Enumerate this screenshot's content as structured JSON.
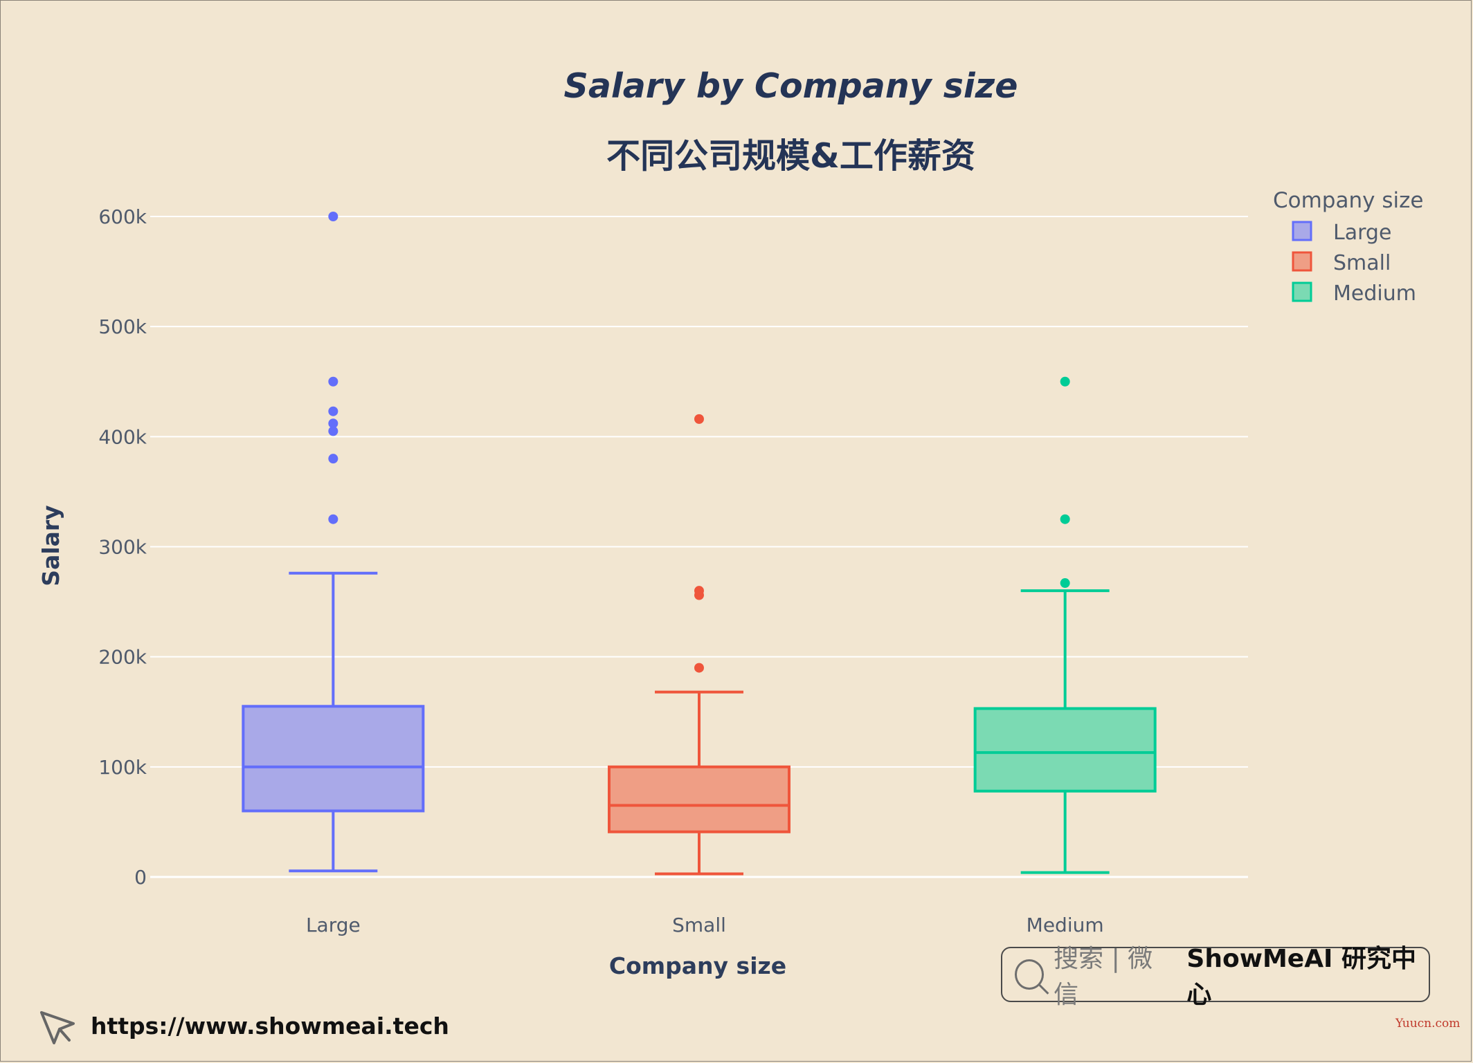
{
  "chart_data": {
    "type": "box",
    "title": "Salary by Company size",
    "subtitle": "不同公司规模&工作薪资",
    "xlabel": "Company size",
    "ylabel": "Salary",
    "ylim": [
      -5000,
      630000
    ],
    "yticks": [
      0,
      100000,
      200000,
      300000,
      400000,
      500000,
      600000
    ],
    "ytick_labels": [
      "0",
      "100k",
      "200k",
      "300k",
      "400k",
      "500k",
      "600k"
    ],
    "categories": [
      "Large",
      "Small",
      "Medium"
    ],
    "grid": true,
    "legend_title": "Company size",
    "legend_position": "top-right",
    "series": [
      {
        "name": "Large",
        "color": "#636efa",
        "fill": "#a9a9e8",
        "whisker_low": 5500,
        "q1": 60000,
        "median": 100000,
        "q3": 155000,
        "whisker_high": 276000,
        "outliers": [
          325000,
          380000,
          405000,
          412000,
          423000,
          450000,
          600000
        ]
      },
      {
        "name": "Small",
        "color": "#ef553b",
        "fill": "#ef9e85",
        "whisker_low": 2800,
        "q1": 41000,
        "median": 65000,
        "q3": 100000,
        "whisker_high": 168000,
        "outliers": [
          190000,
          256000,
          260000,
          416000
        ]
      },
      {
        "name": "Medium",
        "color": "#00cc96",
        "fill": "#7bdab3",
        "whisker_low": 4000,
        "q1": 78000,
        "median": 113000,
        "q3": 153000,
        "whisker_high": 260000,
        "outliers": [
          267000,
          325000,
          450000
        ]
      }
    ]
  },
  "footer": {
    "search_hint": "搜索 | 微信",
    "search_brand": "ShowMeAI 研究中心",
    "site_url": "https://www.showmeai.tech",
    "watermark": "Yuucn.com"
  },
  "icons": [
    "search-icon",
    "cursor-arrow-icon"
  ]
}
